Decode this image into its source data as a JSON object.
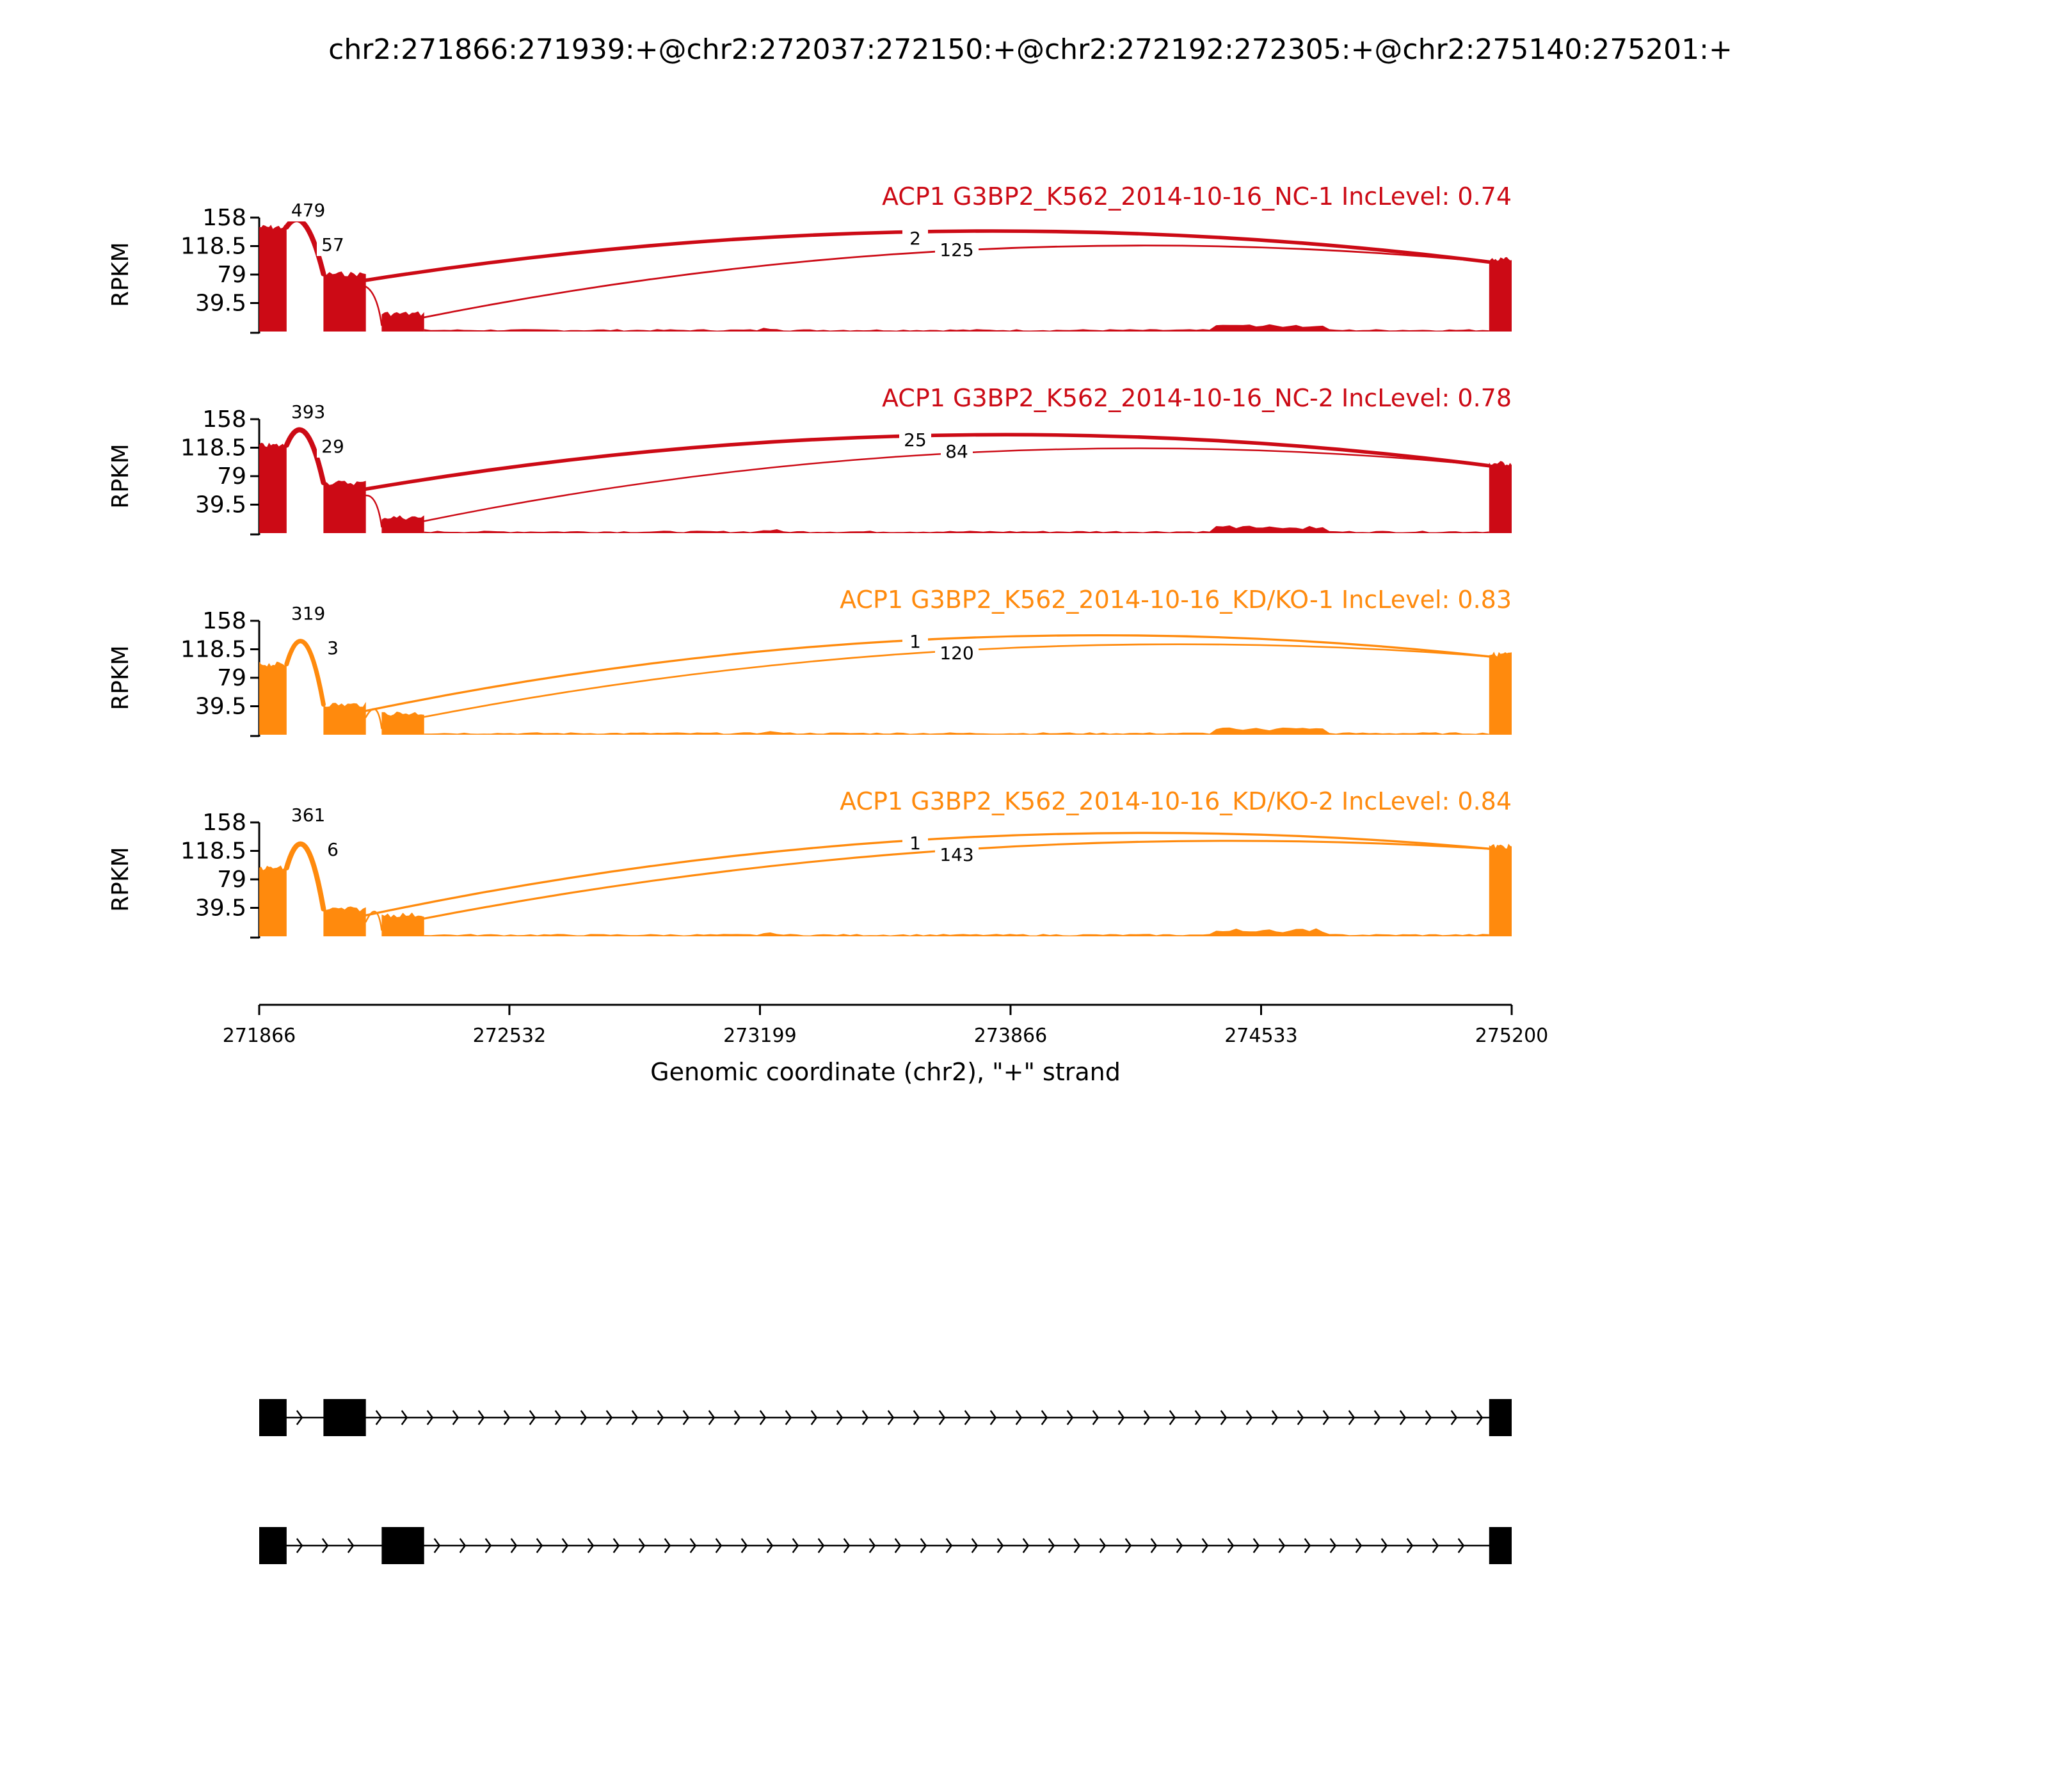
{
  "chart_data": {
    "type": "sashimi",
    "title": "chr2:271866:271939:+@chr2:272037:272150:+@chr2:272192:272305:+@chr2:275140:275201:+",
    "xlabel": "Genomic coordinate (chr2), \"+\" strand",
    "ylabel": "RPKM",
    "xlim": [
      271866,
      275200
    ],
    "x_ticks": [
      "271866",
      "272532",
      "273199",
      "273866",
      "274533",
      "275200"
    ],
    "ylim": [
      0,
      158
    ],
    "y_ticks": [
      "158",
      "118.5",
      "79",
      "39.5"
    ],
    "exons": [
      [
        271866,
        271939
      ],
      [
        272037,
        272150
      ],
      [
        272192,
        272305
      ],
      [
        275140,
        275201
      ]
    ],
    "colors": {
      "NC": "#cc0a15",
      "KD": "#ff8a0d",
      "gene": "#000000"
    },
    "tracks": [
      {
        "name": "ACP1 G3BP2_K562_2014-10-16_NC-1 IncLevel: 0.74",
        "group": "NC",
        "exon_levels": [
          145,
          80,
          25,
          100
        ],
        "junctions": [
          {
            "from": 271939,
            "to": 272037,
            "count": "479",
            "thickness": 479
          },
          {
            "from": 272150,
            "to": 275140,
            "count": "2?",
            "thickness": 250
          },
          {
            "from": 271939,
            "to": 272192,
            "count": "?57",
            "thickness": 57
          },
          {
            "from": 272305,
            "to": 275140,
            "count": "125",
            "thickness": 125
          }
        ]
      },
      {
        "name": "ACP1 G3BP2_K562_2014-10-16_NC-2 IncLevel: 0.78",
        "group": "NC",
        "exon_levels": [
          122,
          70,
          22,
          97
        ],
        "junctions": [
          {
            "from": 271939,
            "to": 272037,
            "count": "393",
            "thickness": 393
          },
          {
            "from": 272150,
            "to": 275140,
            "count": "25?",
            "thickness": 252
          },
          {
            "from": 271939,
            "to": 272192,
            "count": "?29",
            "thickness": 29
          },
          {
            "from": 272305,
            "to": 275140,
            "count": "84",
            "thickness": 84
          }
        ]
      },
      {
        "name": "ACP1 G3BP2_K562_2014-10-16_KD/KO-1 IncLevel: 0.83",
        "group": "KD",
        "exon_levels": [
          98,
          42,
          30,
          112
        ],
        "junctions": [
          {
            "from": 271939,
            "to": 272037,
            "count": "319",
            "thickness": 319
          },
          {
            "from": 272150,
            "to": 275140,
            "count": "1?",
            "thickness": 150
          },
          {
            "from": 271939,
            "to": 272192,
            "count": "?3",
            "thickness": 30
          },
          {
            "from": 272305,
            "to": 275140,
            "count": "120",
            "thickness": 120
          }
        ]
      },
      {
        "name": "ACP1 G3BP2_K562_2014-10-16_KD/KO-2 IncLevel: 0.84",
        "group": "KD",
        "exon_levels": [
          95,
          38,
          30,
          125
        ],
        "junctions": [
          {
            "from": 271939,
            "to": 272037,
            "count": "361",
            "thickness": 361
          },
          {
            "from": 272150,
            "to": 275140,
            "count": "1?",
            "thickness": 150
          },
          {
            "from": 271939,
            "to": 272192,
            "count": "?6",
            "thickness": 36
          },
          {
            "from": 272305,
            "to": 275140,
            "count": "143",
            "thickness": 143
          }
        ]
      }
    ],
    "isoforms": [
      {
        "exons": [
          [
            271866,
            271939
          ],
          [
            272037,
            272150
          ],
          [
            275140,
            275201
          ]
        ]
      },
      {
        "exons": [
          [
            271866,
            271939
          ],
          [
            272192,
            272305
          ],
          [
            275140,
            275201
          ]
        ]
      }
    ]
  }
}
